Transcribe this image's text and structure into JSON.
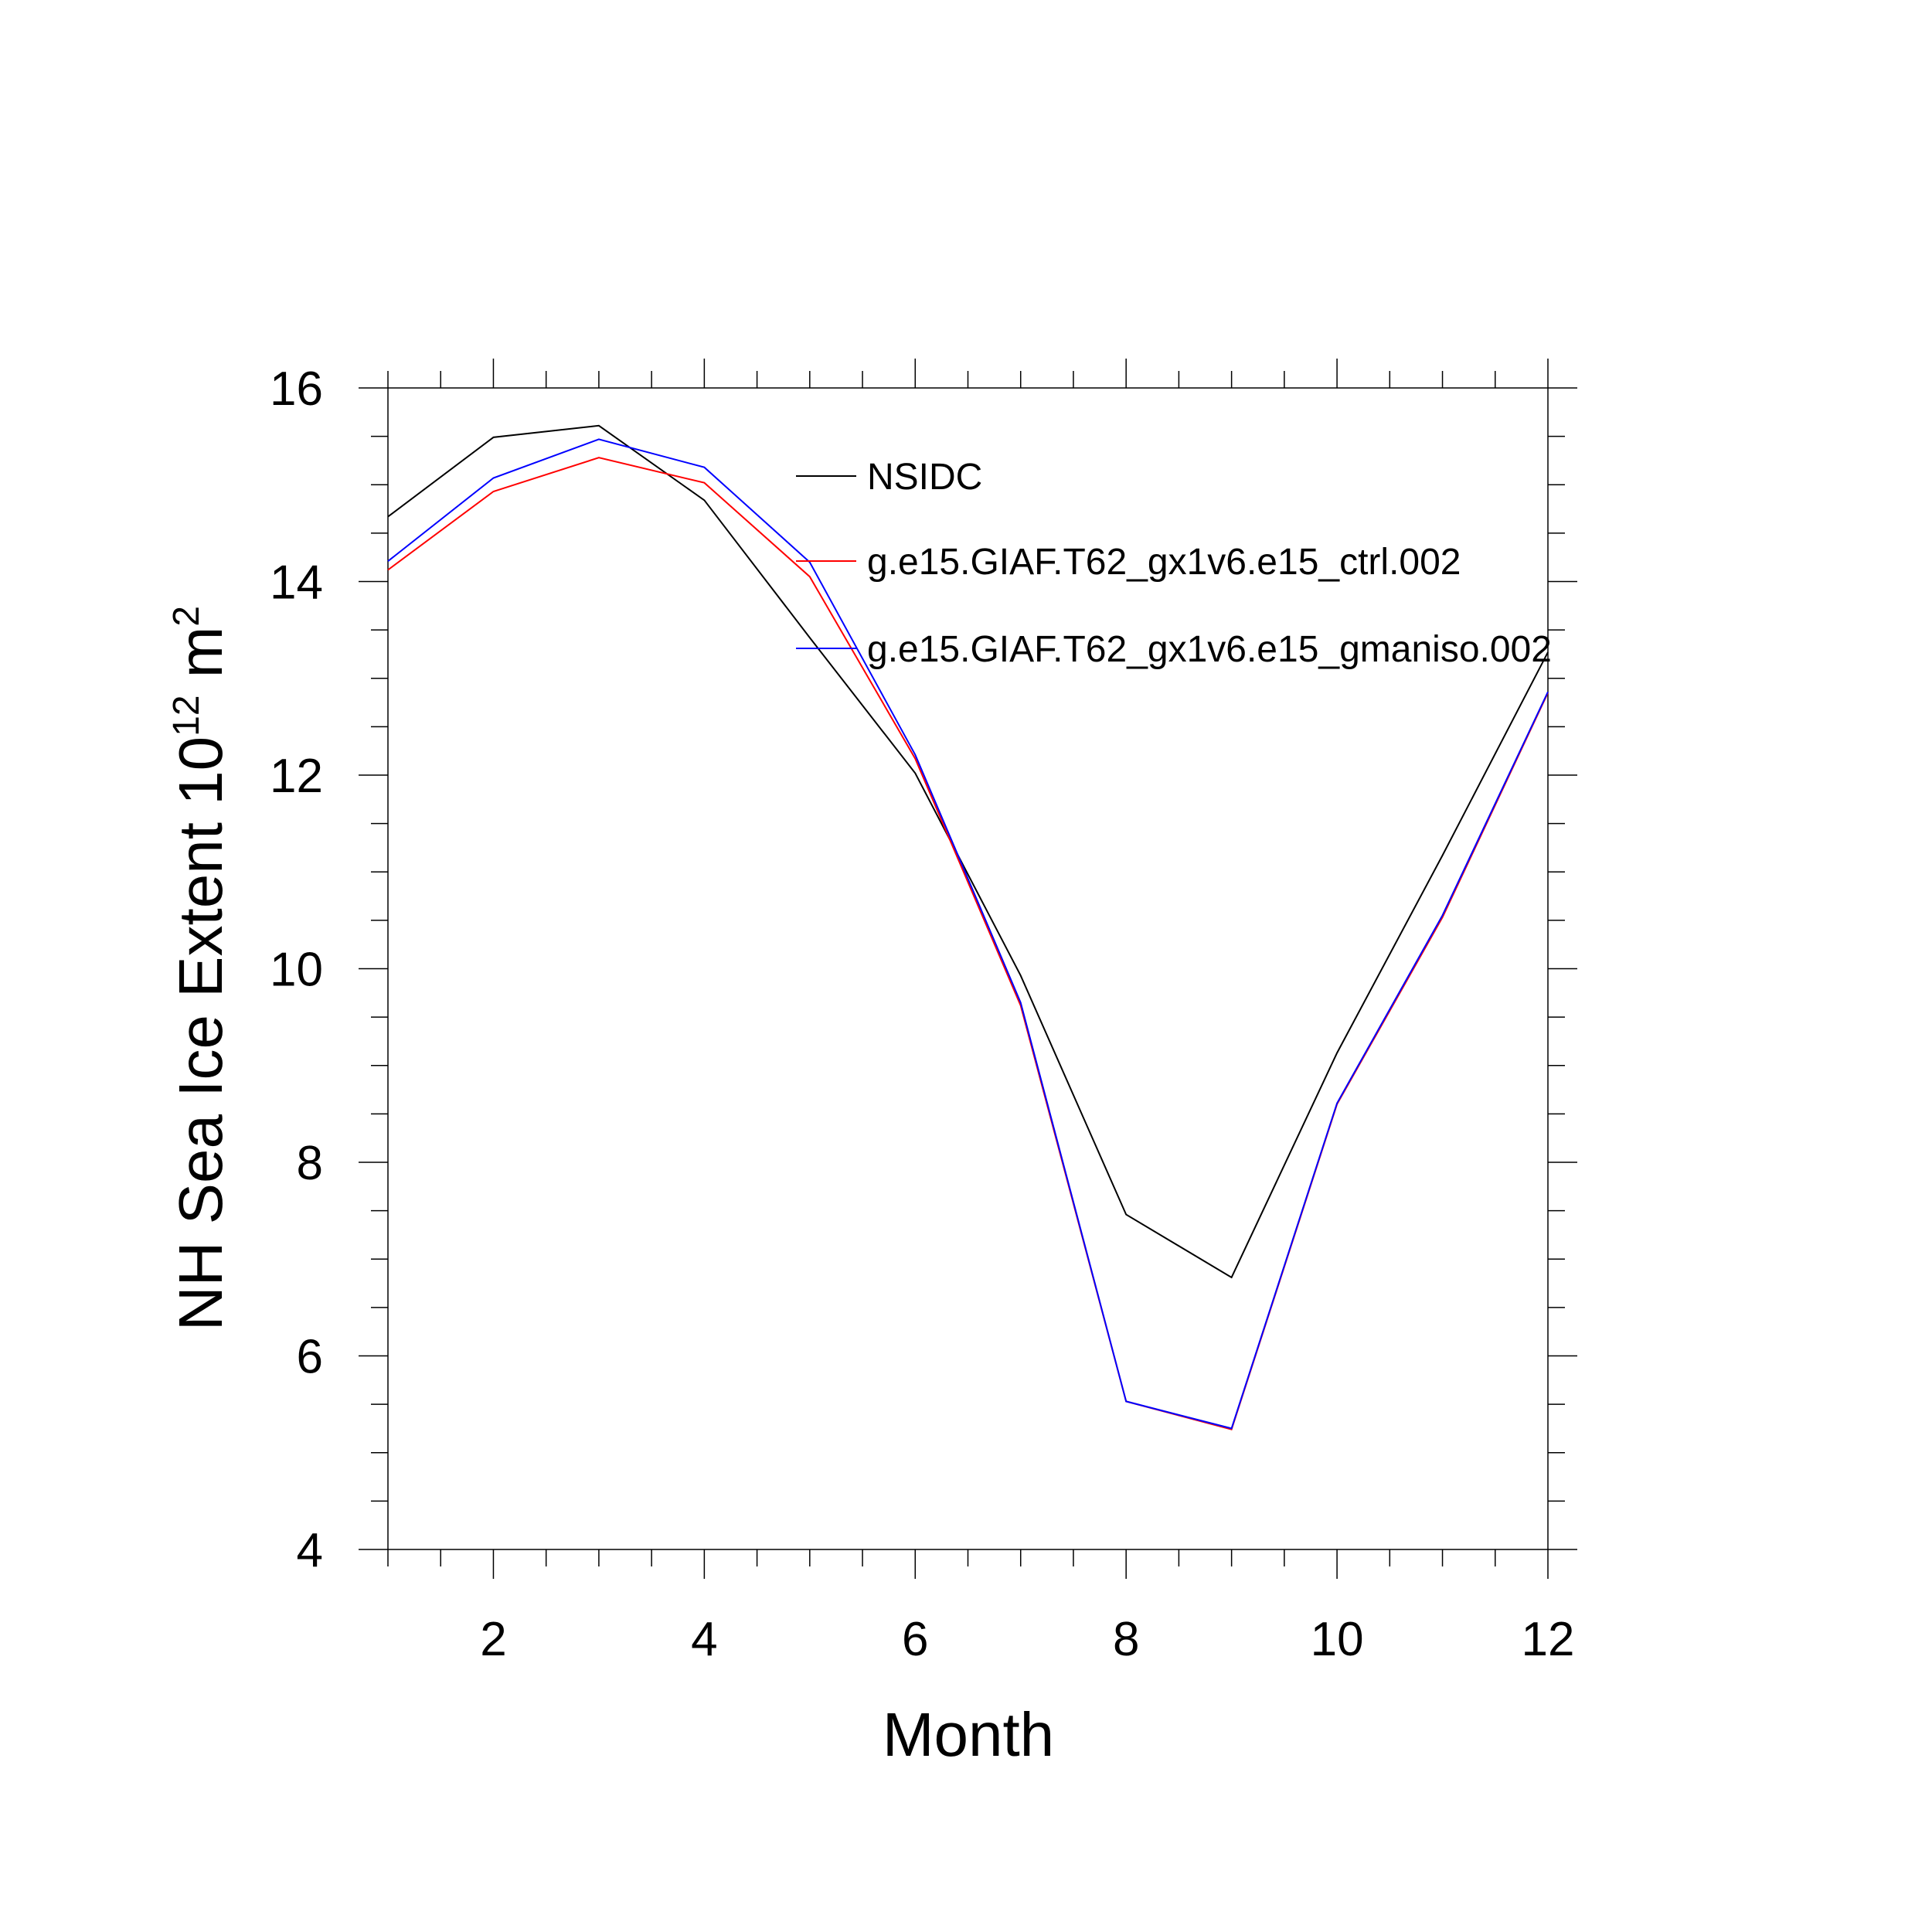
{
  "chart_data": {
    "type": "line",
    "title": "",
    "xlabel": "Month",
    "ylabel": {
      "main": "NH Sea Ice Extent 10",
      "sup1": "12",
      "mid": " m",
      "sup2": "2"
    },
    "xlim": [
      1,
      12
    ],
    "ylim": [
      4,
      16
    ],
    "xticks": [
      2,
      4,
      6,
      8,
      10,
      12
    ],
    "yticks": [
      4,
      6,
      8,
      10,
      12,
      14,
      16
    ],
    "grid": false,
    "legend_position": "top-right",
    "x": [
      1,
      2,
      3,
      4,
      5,
      6,
      7,
      8,
      9,
      10,
      11,
      12
    ],
    "series": [
      {
        "name": "NSIDC",
        "color": "#000000",
        "values": [
          14.67,
          15.49,
          15.61,
          14.84,
          13.42,
          12.02,
          9.93,
          7.46,
          6.81,
          9.13,
          11.17,
          13.27
        ]
      },
      {
        "name": "g.e15.GIAF.T62_gx1v6.e15_ctrl.002",
        "color": "#ff0000",
        "values": [
          14.12,
          14.93,
          15.28,
          15.02,
          14.05,
          12.17,
          9.62,
          5.53,
          5.24,
          8.6,
          10.53,
          12.85
        ]
      },
      {
        "name": "g.e15.GIAF.T62_gx1v6.e15_gmaniso.002",
        "color": "#0000ff",
        "values": [
          14.21,
          15.07,
          15.47,
          15.18,
          14.2,
          12.21,
          9.65,
          5.53,
          5.25,
          8.61,
          10.55,
          12.86
        ]
      }
    ]
  }
}
